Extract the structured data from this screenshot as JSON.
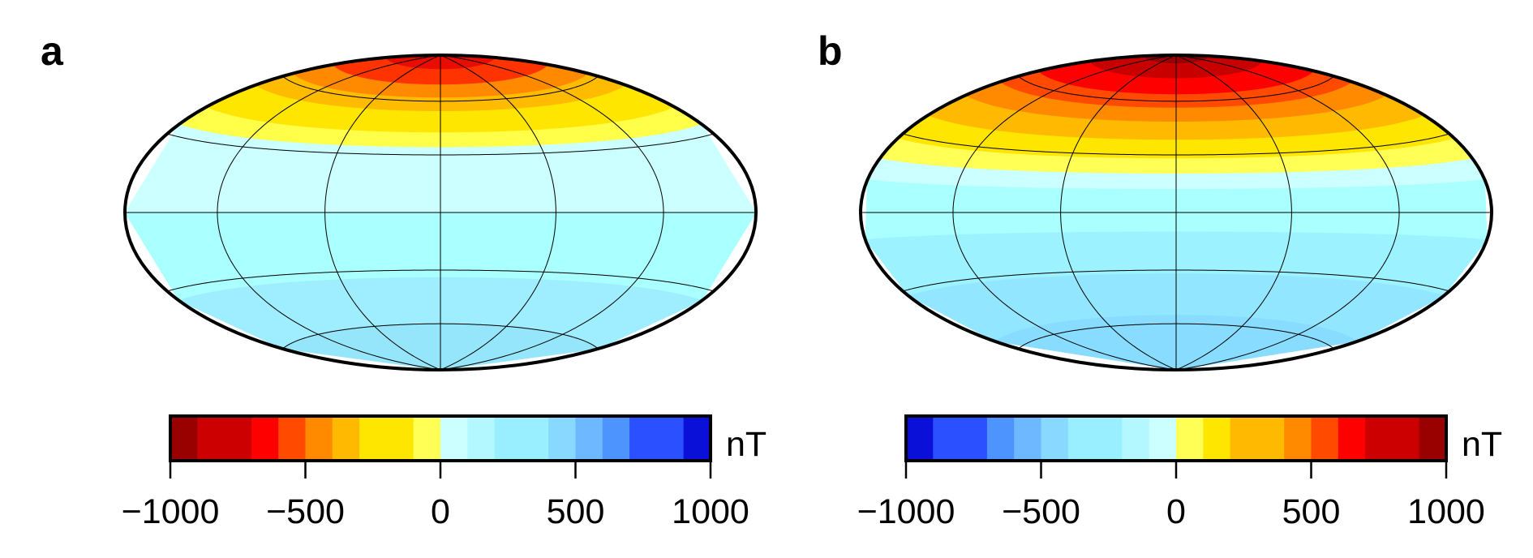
{
  "chart_data": [
    {
      "type": "heatmap",
      "panel_label": "a",
      "projection": "Hammer-Aitoff (global map)",
      "field": "zonal",
      "bands": [
        {
          "lat_from": 90,
          "lat_to": 80,
          "color": "#e80d00"
        },
        {
          "lat_from": 80,
          "lat_to": 70,
          "color": "#ff3300"
        },
        {
          "lat_from": 70,
          "lat_to": 62,
          "color": "#ff8a00"
        },
        {
          "lat_from": 62,
          "lat_to": 54,
          "color": "#ffbb00"
        },
        {
          "lat_from": 54,
          "lat_to": 42,
          "color": "#ffe600"
        },
        {
          "lat_from": 42,
          "lat_to": 34,
          "color": "#ffff4a"
        },
        {
          "lat_from": 34,
          "lat_to": 0,
          "color": "#ccffff"
        },
        {
          "lat_from": 0,
          "lat_to": -34,
          "color": "#aaffff"
        },
        {
          "lat_from": -34,
          "lat_to": -60,
          "color": "#9eeeff"
        },
        {
          "lat_from": -60,
          "lat_to": -90,
          "color": "#95e6fb"
        }
      ],
      "colorbar": {
        "unit": "nT",
        "range": [
          -1000,
          1000
        ],
        "ticks": [
          "−1000",
          "−500",
          "0",
          "500",
          "1000"
        ],
        "bins": [
          {
            "from": -1000,
            "to": -900,
            "color": "#990000"
          },
          {
            "from": -900,
            "to": -700,
            "color": "#cc0000"
          },
          {
            "from": -700,
            "to": -600,
            "color": "#ff0000"
          },
          {
            "from": -600,
            "to": -500,
            "color": "#ff4a00"
          },
          {
            "from": -500,
            "to": -400,
            "color": "#ff8a00"
          },
          {
            "from": -400,
            "to": -300,
            "color": "#ffba00"
          },
          {
            "from": -300,
            "to": -100,
            "color": "#ffe600"
          },
          {
            "from": -100,
            "to": 0,
            "color": "#ffff55"
          },
          {
            "from": 0,
            "to": 100,
            "color": "#ccffff"
          },
          {
            "from": 100,
            "to": 200,
            "color": "#b3f8ff"
          },
          {
            "from": 200,
            "to": 400,
            "color": "#99eeff"
          },
          {
            "from": 400,
            "to": 500,
            "color": "#88d8ff"
          },
          {
            "from": 500,
            "to": 600,
            "color": "#6db8ff"
          },
          {
            "from": 600,
            "to": 700,
            "color": "#4d94ff"
          },
          {
            "from": 700,
            "to": 900,
            "color": "#2b50ff"
          },
          {
            "from": 900,
            "to": 1000,
            "color": "#0a10d8"
          }
        ]
      }
    },
    {
      "type": "heatmap",
      "panel_label": "b",
      "projection": "Hammer-Aitoff (global map)",
      "field": "zonal",
      "bands": [
        {
          "lat_from": 90,
          "lat_to": 84,
          "color": "#990000"
        },
        {
          "lat_from": 84,
          "lat_to": 74,
          "color": "#c80000"
        },
        {
          "lat_from": 74,
          "lat_to": 64,
          "color": "#ff0000"
        },
        {
          "lat_from": 64,
          "lat_to": 56,
          "color": "#ff4a00"
        },
        {
          "lat_from": 56,
          "lat_to": 48,
          "color": "#ff8a00"
        },
        {
          "lat_from": 48,
          "lat_to": 38,
          "color": "#ffba00"
        },
        {
          "lat_from": 38,
          "lat_to": 28,
          "color": "#ffe600"
        },
        {
          "lat_from": 28,
          "lat_to": 20,
          "color": "#ffff55"
        },
        {
          "lat_from": 20,
          "lat_to": 12,
          "color": "#ccffff"
        },
        {
          "lat_from": 12,
          "lat_to": -10,
          "color": "#aaffff"
        },
        {
          "lat_from": -10,
          "lat_to": -32,
          "color": "#9cf2ff"
        },
        {
          "lat_from": -32,
          "lat_to": -55,
          "color": "#93e6ff"
        },
        {
          "lat_from": -55,
          "lat_to": -90,
          "color": "#88dcff"
        }
      ],
      "colorbar": {
        "unit": "nT",
        "range": [
          -1000,
          1000
        ],
        "ticks": [
          "−1000",
          "−500",
          "0",
          "500",
          "1000"
        ],
        "bins": [
          {
            "from": -1000,
            "to": -900,
            "color": "#0a10d8"
          },
          {
            "from": -900,
            "to": -700,
            "color": "#2b50ff"
          },
          {
            "from": -700,
            "to": -600,
            "color": "#4d94ff"
          },
          {
            "from": -600,
            "to": -500,
            "color": "#6db8ff"
          },
          {
            "from": -500,
            "to": -400,
            "color": "#88d8ff"
          },
          {
            "from": -400,
            "to": -200,
            "color": "#99eeff"
          },
          {
            "from": -200,
            "to": -100,
            "color": "#b3f8ff"
          },
          {
            "from": -100,
            "to": 0,
            "color": "#ccffff"
          },
          {
            "from": 0,
            "to": 100,
            "color": "#ffff55"
          },
          {
            "from": 100,
            "to": 200,
            "color": "#ffe600"
          },
          {
            "from": 200,
            "to": 400,
            "color": "#ffba00"
          },
          {
            "from": 400,
            "to": 500,
            "color": "#ff8a00"
          },
          {
            "from": 500,
            "to": 600,
            "color": "#ff4a00"
          },
          {
            "from": 600,
            "to": 700,
            "color": "#ff0000"
          },
          {
            "from": 700,
            "to": 900,
            "color": "#cc0000"
          },
          {
            "from": 900,
            "to": 1000,
            "color": "#990000"
          }
        ]
      }
    }
  ]
}
